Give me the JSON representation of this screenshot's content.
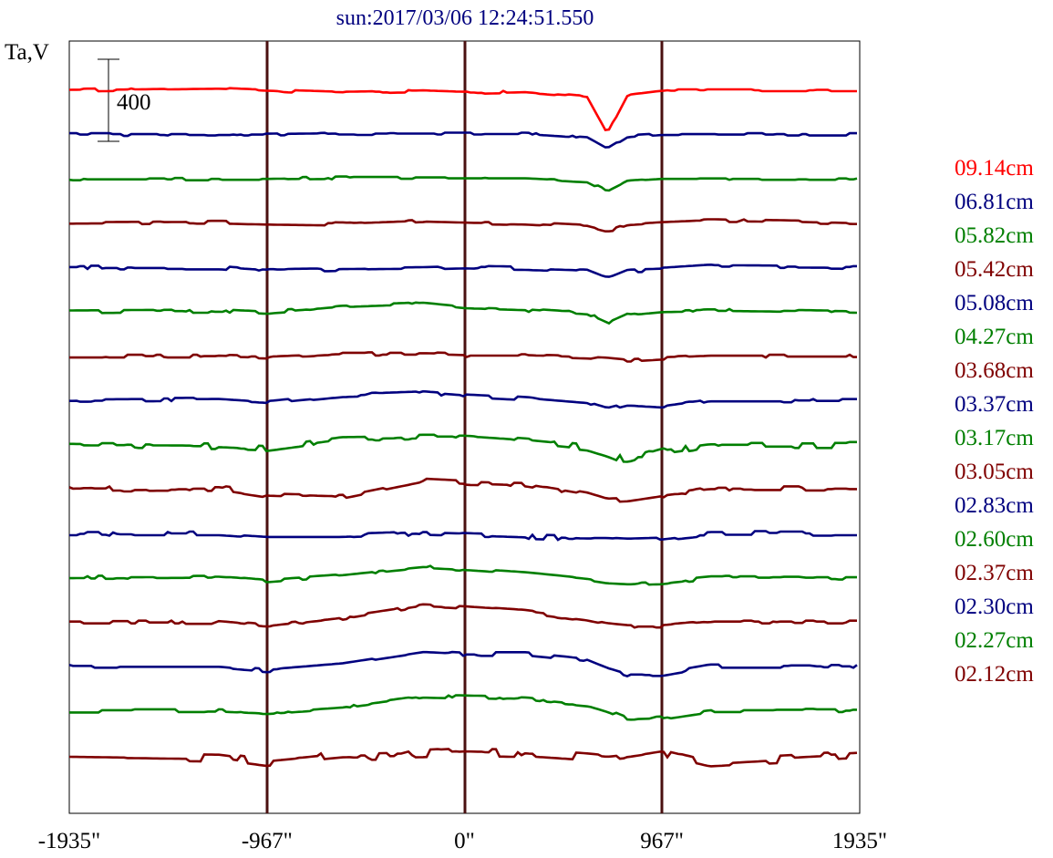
{
  "colors": {
    "frame": "#000000",
    "limb": "#4a1010",
    "red": "#ff0000",
    "blue": "#00007f",
    "green": "#007f00",
    "brown": "#7f0000"
  },
  "chart_data": {
    "type": "line",
    "title": "sun:2017/03/06 12:24:51.550",
    "ylabel": "Ta,V",
    "scale_bar_label": "400",
    "scale_bar_value": 400,
    "xlim": [
      -1935,
      1935
    ],
    "xticks": [
      -1935,
      -967,
      0,
      967,
      1935
    ],
    "xtick_labels": [
      "-1935\"",
      "-967\"",
      "0\"",
      "967\"",
      "1935\""
    ],
    "vertical_lines": [
      -967,
      0,
      967
    ],
    "x_knots": [
      -1935,
      -1200,
      -967,
      -600,
      -200,
      0,
      300,
      600,
      700,
      800,
      967,
      1200,
      1935
    ],
    "series": [
      {
        "name": "09.14cm",
        "color": "#ff0000",
        "wobble": 3,
        "values": [
          0,
          10,
          0,
          -12,
          -5,
          -12,
          -5,
          -30,
          -210,
          -20,
          0,
          0,
          0
        ]
      },
      {
        "name": "06.81cm",
        "color": "#00007f",
        "wobble": 3,
        "values": [
          0,
          0,
          0,
          5,
          5,
          5,
          5,
          -15,
          -70,
          -10,
          0,
          0,
          0
        ]
      },
      {
        "name": "05.82cm",
        "color": "#007f00",
        "wobble": 3,
        "values": [
          0,
          0,
          0,
          5,
          5,
          5,
          5,
          -10,
          -60,
          -10,
          0,
          0,
          0
        ]
      },
      {
        "name": "05.42cm",
        "color": "#7f0000",
        "wobble": 4,
        "values": [
          0,
          5,
          0,
          -5,
          10,
          5,
          0,
          -15,
          -40,
          -5,
          5,
          15,
          0
        ]
      },
      {
        "name": "05.08cm",
        "color": "#00007f",
        "wobble": 4,
        "values": [
          0,
          0,
          -15,
          -10,
          -5,
          0,
          -5,
          -15,
          -55,
          -15,
          -10,
          5,
          0
        ]
      },
      {
        "name": "04.27cm",
        "color": "#007f00",
        "wobble": 4,
        "values": [
          0,
          5,
          -5,
          25,
          40,
          20,
          10,
          -10,
          -55,
          -10,
          5,
          10,
          0
        ]
      },
      {
        "name": "03.68cm",
        "color": "#7f0000",
        "wobble": 4,
        "values": [
          0,
          0,
          -5,
          10,
          10,
          5,
          5,
          -5,
          -10,
          -20,
          -10,
          0,
          0
        ]
      },
      {
        "name": "03.37cm",
        "color": "#00007f",
        "wobble": 4,
        "values": [
          0,
          5,
          -10,
          25,
          40,
          25,
          10,
          -15,
          -45,
          -20,
          -30,
          0,
          0
        ]
      },
      {
        "name": "03.17cm",
        "color": "#007f00",
        "wobble": 8,
        "values": [
          0,
          -5,
          -15,
          35,
          40,
          40,
          20,
          -10,
          -40,
          -80,
          -30,
          0,
          0
        ]
      },
      {
        "name": "03.05cm",
        "color": "#7f0000",
        "wobble": 6,
        "values": [
          0,
          5,
          -30,
          -40,
          40,
          30,
          20,
          -30,
          -60,
          -55,
          -30,
          0,
          0
        ]
      },
      {
        "name": "02.83cm",
        "color": "#00007f",
        "wobble": 5,
        "values": [
          0,
          0,
          -15,
          -15,
          0,
          -5,
          -15,
          -25,
          -25,
          -30,
          -25,
          0,
          0
        ]
      },
      {
        "name": "02.60cm",
        "color": "#007f00",
        "wobble": 4,
        "values": [
          0,
          5,
          -15,
          10,
          50,
          40,
          20,
          -10,
          -25,
          -30,
          -25,
          0,
          0
        ]
      },
      {
        "name": "02.37cm",
        "color": "#7f0000",
        "wobble": 4,
        "values": [
          0,
          0,
          -20,
          20,
          80,
          70,
          50,
          10,
          -10,
          -20,
          -20,
          0,
          0
        ]
      },
      {
        "name": "02.30cm",
        "color": "#00007f",
        "wobble": 4,
        "values": [
          0,
          0,
          -20,
          10,
          70,
          60,
          60,
          30,
          -10,
          -40,
          -40,
          0,
          0
        ]
      },
      {
        "name": "02.27cm",
        "color": "#007f00",
        "wobble": 4,
        "values": [
          0,
          0,
          -10,
          15,
          70,
          65,
          60,
          30,
          0,
          -40,
          -35,
          0,
          0
        ]
      },
      {
        "name": "02.12cm",
        "color": "#7f0000",
        "wobble": 10,
        "values": [
          0,
          -10,
          -40,
          -5,
          5,
          15,
          10,
          -10,
          -20,
          -10,
          15,
          -40,
          0
        ]
      }
    ]
  }
}
